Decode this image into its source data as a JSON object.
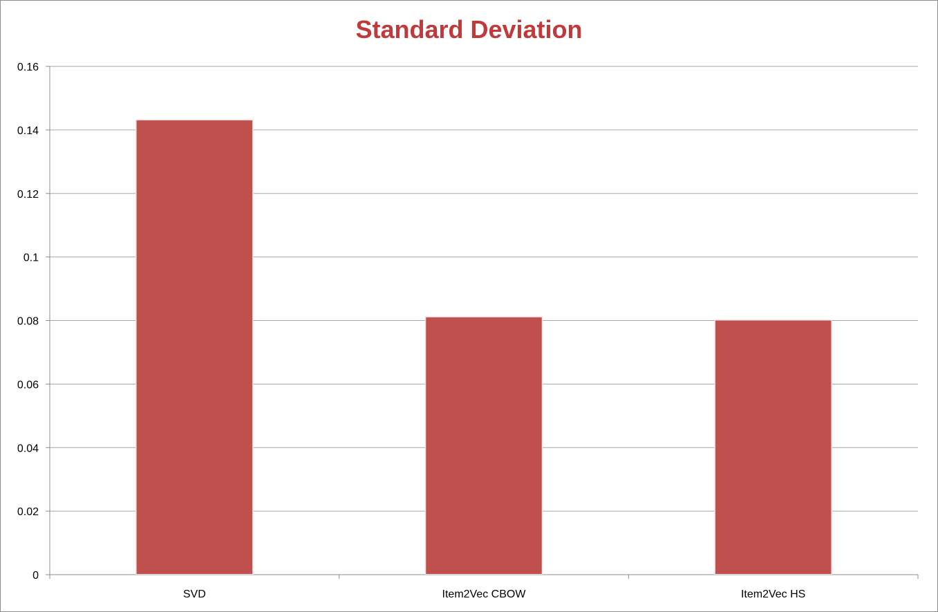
{
  "chart_data": {
    "type": "bar",
    "title": "Standard Deviation",
    "categories": [
      "SVD",
      "Item2Vec CBOW",
      "Item2Vec HS"
    ],
    "values": [
      0.143,
      0.081,
      0.08
    ],
    "xlabel": "",
    "ylabel": "",
    "ylim": [
      0,
      0.16
    ],
    "yticks": [
      "0",
      "0.02",
      "0.04",
      "0.06",
      "0.08",
      "0.1",
      "0.12",
      "0.14",
      "0.16"
    ],
    "grid": true,
    "legend": "none",
    "bar_color": "#c0504d",
    "title_color": "#c0393b"
  }
}
